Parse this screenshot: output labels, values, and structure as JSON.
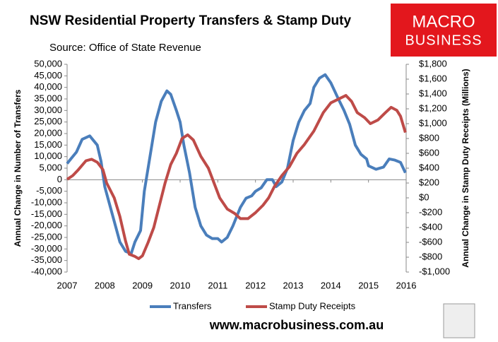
{
  "chart_data": {
    "type": "line",
    "title": "NSW Residential Property Transfers & Stamp Duty",
    "subtitle": "Source: Office of State Revenue",
    "ylabel": "Annual Change in Number of Transfers",
    "y2label": "Annual Change in Stamp Duty Receipts (Millions)",
    "xlim": [
      2007,
      2016
    ],
    "xticks": [
      2007,
      2008,
      2009,
      2010,
      2011,
      2012,
      2013,
      2014,
      2015,
      2016
    ],
    "ylim": [
      -40000,
      50000
    ],
    "yticks": [
      {
        "value": -40000,
        "label": "-40,000"
      },
      {
        "value": -35000,
        "label": "-35,000"
      },
      {
        "value": -30000,
        "label": "-30,000"
      },
      {
        "value": -25000,
        "label": "-25,000"
      },
      {
        "value": -20000,
        "label": "-20,000"
      },
      {
        "value": -15000,
        "label": "-15,000"
      },
      {
        "value": -10000,
        "label": "-10,000"
      },
      {
        "value": -5000,
        "label": "-5,000"
      },
      0,
      {
        "value": 5000,
        "label": "5,000"
      },
      {
        "value": 10000,
        "label": "10,000"
      },
      {
        "value": 15000,
        "label": "15,000"
      },
      {
        "value": 20000,
        "label": "20,000"
      },
      {
        "value": 25000,
        "label": "25,000"
      },
      {
        "value": 30000,
        "label": "30,000"
      },
      {
        "value": 35000,
        "label": "35,000"
      },
      {
        "value": 40000,
        "label": "40,000"
      },
      {
        "value": 45000,
        "label": "45,000"
      },
      {
        "value": 50000,
        "label": "50,000"
      }
    ],
    "y2lim": [
      -1000,
      1800
    ],
    "y2ticks": [
      {
        "value": -1000,
        "label": "-$1,000"
      },
      {
        "value": -800,
        "label": "-$800"
      },
      {
        "value": -600,
        "label": "-$600"
      },
      {
        "value": -400,
        "label": "-$400"
      },
      {
        "value": -200,
        "label": "-$200"
      },
      {
        "value": 0,
        "label": "$0"
      },
      {
        "value": 200,
        "label": "$200"
      },
      {
        "value": 400,
        "label": "$400"
      },
      {
        "value": 600,
        "label": "$600"
      },
      {
        "value": 800,
        "label": "$800"
      },
      {
        "value": 1000,
        "label": "$1,000"
      },
      {
        "value": 1200,
        "label": "$1,200"
      },
      {
        "value": 1400,
        "label": "$1,400"
      },
      {
        "value": 1600,
        "label": "$1,600"
      },
      {
        "value": 1800,
        "label": "$1,800"
      }
    ],
    "series": [
      {
        "name": "Transfers",
        "color": "#4a7ebb",
        "x": [
          2007.0,
          2007.1,
          2007.25,
          2007.4,
          2007.6,
          2007.8,
          2007.9,
          2008.0,
          2008.2,
          2008.4,
          2008.55,
          2008.7,
          2008.8,
          2008.95,
          2009.05,
          2009.2,
          2009.35,
          2009.5,
          2009.65,
          2009.75,
          2009.9,
          2010.0,
          2010.1,
          2010.25,
          2010.4,
          2010.55,
          2010.7,
          2010.85,
          2011.0,
          2011.1,
          2011.25,
          2011.4,
          2011.6,
          2011.75,
          2011.9,
          2012.0,
          2012.15,
          2012.3,
          2012.45,
          2012.55,
          2012.7,
          2012.85,
          2013.0,
          2013.15,
          2013.3,
          2013.45,
          2013.55,
          2013.7,
          2013.85,
          2014.0,
          2014.2,
          2014.35,
          2014.5,
          2014.65,
          2014.8,
          2014.95,
          2015.0,
          2015.2,
          2015.4,
          2015.55,
          2015.7,
          2015.85,
          2015.98
        ],
        "values": [
          7000,
          9000,
          12000,
          17500,
          19000,
          15000,
          8000,
          -3000,
          -15000,
          -27000,
          -31000,
          -32000,
          -27000,
          -22000,
          -5000,
          10000,
          25000,
          34000,
          38500,
          37000,
          30000,
          25000,
          15000,
          3000,
          -12000,
          -20000,
          -24000,
          -25500,
          -25500,
          -27000,
          -25000,
          -20000,
          -12000,
          -8000,
          -7000,
          -5000,
          -3500,
          0,
          0,
          -3000,
          -1000,
          5000,
          17000,
          25000,
          30000,
          33000,
          40000,
          44000,
          45500,
          42000,
          35000,
          30000,
          24000,
          15000,
          11000,
          9000,
          6000,
          4500,
          5500,
          9000,
          8500,
          7500,
          3000
        ]
      },
      {
        "name": "Stamp Duty Receipts",
        "color": "#be4b48",
        "axis": "y2",
        "x": [
          2007.0,
          2007.15,
          2007.3,
          2007.5,
          2007.65,
          2007.8,
          2007.95,
          2008.05,
          2008.25,
          2008.4,
          2008.55,
          2008.65,
          2008.8,
          2008.9,
          2009.0,
          2009.15,
          2009.3,
          2009.45,
          2009.6,
          2009.75,
          2009.9,
          2010.05,
          2010.2,
          2010.35,
          2010.55,
          2010.75,
          2010.9,
          2011.05,
          2011.25,
          2011.45,
          2011.6,
          2011.8,
          2012.0,
          2012.2,
          2012.35,
          2012.5,
          2012.7,
          2012.9,
          2013.1,
          2013.3,
          2013.55,
          2013.8,
          2014.0,
          2014.2,
          2014.4,
          2014.55,
          2014.7,
          2014.9,
          2015.05,
          2015.25,
          2015.45,
          2015.6,
          2015.75,
          2015.85,
          2015.98
        ],
        "values": [
          250,
          300,
          380,
          500,
          520,
          480,
          380,
          200,
          0,
          -250,
          -580,
          -760,
          -790,
          -820,
          -780,
          -600,
          -400,
          -100,
          200,
          450,
          600,
          800,
          850,
          780,
          560,
          400,
          200,
          0,
          -150,
          -210,
          -280,
          -280,
          -200,
          -100,
          0,
          150,
          300,
          420,
          600,
          720,
          900,
          1150,
          1280,
          1330,
          1380,
          1300,
          1150,
          1080,
          1000,
          1050,
          1150,
          1220,
          1180,
          1100,
          880
        ]
      }
    ]
  },
  "logo": {
    "line1": "MACRO",
    "line2": "BUSINESS"
  },
  "website": "www.macrobusiness.com.au"
}
